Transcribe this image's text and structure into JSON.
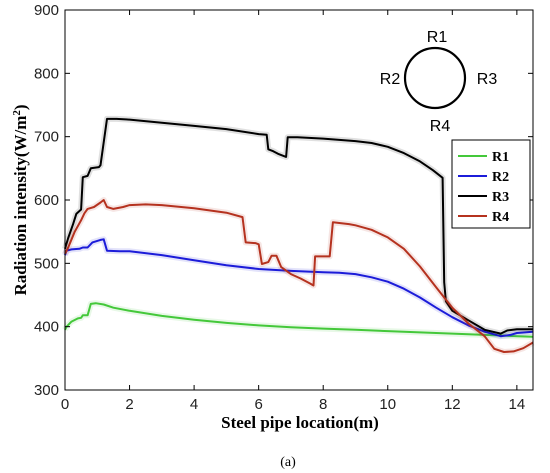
{
  "chart_data": {
    "type": "line",
    "xlabel": "Steel pipe location(m)",
    "ylabel_main": "Radiation intensity(W/m",
    "ylabel_sup": "2",
    "ylabel_close": ")",
    "xlim": [
      0,
      14.5
    ],
    "ylim": [
      300,
      900
    ],
    "x_ticks": [
      0,
      2,
      4,
      6,
      8,
      10,
      12,
      14
    ],
    "y_ticks": [
      300,
      400,
      500,
      600,
      700,
      800,
      900
    ],
    "grid": false,
    "legend_placement": "right",
    "caption": "(a)",
    "inset": {
      "labels": {
        "top": "R1",
        "left": "R2",
        "right": "R3",
        "bottom": "R4"
      }
    },
    "series": [
      {
        "name": "R1",
        "color": "#44c83a",
        "points": [
          [
            0,
            395
          ],
          [
            0.05,
            400
          ],
          [
            0.2,
            408
          ],
          [
            0.4,
            413
          ],
          [
            0.5,
            414
          ],
          [
            0.55,
            418
          ],
          [
            0.7,
            418
          ],
          [
            0.8,
            436
          ],
          [
            0.95,
            437
          ],
          [
            1.2,
            435
          ],
          [
            1.5,
            430
          ],
          [
            2,
            425
          ],
          [
            3,
            417
          ],
          [
            4,
            411
          ],
          [
            5,
            406
          ],
          [
            6,
            402
          ],
          [
            7,
            399
          ],
          [
            8,
            397
          ],
          [
            9,
            395
          ],
          [
            10,
            393
          ],
          [
            11,
            391
          ],
          [
            12,
            389
          ],
          [
            12.5,
            388
          ],
          [
            13,
            387
          ],
          [
            13.5,
            386
          ],
          [
            14,
            385
          ],
          [
            14.5,
            384
          ]
        ]
      },
      {
        "name": "R2",
        "color": "#1c1cd9",
        "points": [
          [
            0,
            513
          ],
          [
            0.05,
            520
          ],
          [
            0.2,
            522
          ],
          [
            0.45,
            523
          ],
          [
            0.55,
            525
          ],
          [
            0.7,
            525
          ],
          [
            0.85,
            533
          ],
          [
            1.1,
            537
          ],
          [
            1.2,
            538
          ],
          [
            1.3,
            520
          ],
          [
            1.7,
            519
          ],
          [
            2,
            519
          ],
          [
            3,
            513
          ],
          [
            4,
            505
          ],
          [
            5,
            497
          ],
          [
            6,
            491
          ],
          [
            7,
            488
          ],
          [
            8,
            486
          ],
          [
            8.5,
            485
          ],
          [
            9,
            483
          ],
          [
            9.5,
            478
          ],
          [
            10,
            471
          ],
          [
            10.5,
            460
          ],
          [
            11,
            446
          ],
          [
            11.5,
            430
          ],
          [
            12,
            415
          ],
          [
            12.5,
            402
          ],
          [
            13,
            392
          ],
          [
            13.5,
            385
          ],
          [
            13.8,
            387
          ],
          [
            14,
            390
          ],
          [
            14.5,
            392
          ]
        ]
      },
      {
        "name": "R3",
        "color": "#000000",
        "points": [
          [
            0,
            523
          ],
          [
            0.1,
            540
          ],
          [
            0.25,
            562
          ],
          [
            0.35,
            578
          ],
          [
            0.5,
            585
          ],
          [
            0.55,
            636
          ],
          [
            0.7,
            638
          ],
          [
            0.8,
            650
          ],
          [
            1.05,
            652
          ],
          [
            1.1,
            655
          ],
          [
            1.3,
            728
          ],
          [
            1.6,
            728
          ],
          [
            2,
            727
          ],
          [
            3,
            722
          ],
          [
            4,
            717
          ],
          [
            5,
            712
          ],
          [
            6,
            704
          ],
          [
            6.25,
            703
          ],
          [
            6.3,
            680
          ],
          [
            6.45,
            677
          ],
          [
            6.6,
            673
          ],
          [
            6.85,
            668
          ],
          [
            6.9,
            699
          ],
          [
            7.2,
            699
          ],
          [
            8,
            697
          ],
          [
            9,
            693
          ],
          [
            9.5,
            690
          ],
          [
            10,
            684
          ],
          [
            10.5,
            674
          ],
          [
            11,
            661
          ],
          [
            11.4,
            647
          ],
          [
            11.7,
            635
          ],
          [
            11.75,
            470
          ],
          [
            11.8,
            440
          ],
          [
            12,
            425
          ],
          [
            12.5,
            410
          ],
          [
            13,
            395
          ],
          [
            13.5,
            389
          ],
          [
            13.7,
            394
          ],
          [
            14,
            396
          ],
          [
            14.5,
            396
          ]
        ]
      },
      {
        "name": "R4",
        "color": "#b5321f",
        "points": [
          [
            0,
            515
          ],
          [
            0.1,
            525
          ],
          [
            0.3,
            550
          ],
          [
            0.5,
            568
          ],
          [
            0.6,
            579
          ],
          [
            0.7,
            586
          ],
          [
            0.9,
            589
          ],
          [
            1.1,
            596
          ],
          [
            1.2,
            600
          ],
          [
            1.3,
            589
          ],
          [
            1.5,
            586
          ],
          [
            1.8,
            589
          ],
          [
            2,
            592
          ],
          [
            2.5,
            593
          ],
          [
            3,
            592
          ],
          [
            4,
            587
          ],
          [
            5,
            580
          ],
          [
            5.5,
            573
          ],
          [
            5.6,
            533
          ],
          [
            5.9,
            532
          ],
          [
            6,
            530
          ],
          [
            6.1,
            499
          ],
          [
            6.3,
            502
          ],
          [
            6.4,
            512
          ],
          [
            6.55,
            512
          ],
          [
            6.7,
            494
          ],
          [
            7,
            483
          ],
          [
            7.3,
            476
          ],
          [
            7.6,
            468
          ],
          [
            7.7,
            465
          ],
          [
            7.75,
            511
          ],
          [
            8.2,
            511
          ],
          [
            8.3,
            565
          ],
          [
            8.8,
            562
          ],
          [
            9,
            560
          ],
          [
            9.5,
            553
          ],
          [
            10,
            541
          ],
          [
            10.5,
            523
          ],
          [
            11,
            495
          ],
          [
            11.5,
            462
          ],
          [
            12,
            430
          ],
          [
            12.5,
            405
          ],
          [
            13,
            385
          ],
          [
            13.3,
            365
          ],
          [
            13.6,
            360
          ],
          [
            13.9,
            361
          ],
          [
            14.2,
            366
          ],
          [
            14.5,
            375
          ]
        ]
      }
    ]
  }
}
